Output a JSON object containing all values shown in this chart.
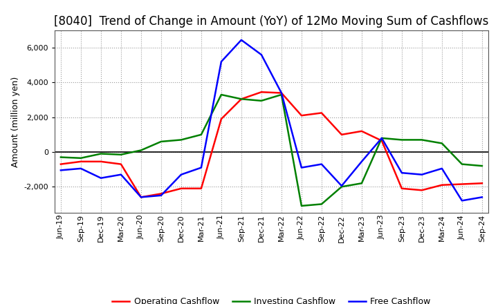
{
  "title": "[8040]  Trend of Change in Amount (YoY) of 12Mo Moving Sum of Cashflows",
  "ylabel": "Amount (million yen)",
  "x_labels": [
    "Jun-19",
    "Sep-19",
    "Dec-19",
    "Mar-20",
    "Jun-20",
    "Sep-20",
    "Dec-20",
    "Mar-21",
    "Jun-21",
    "Sep-21",
    "Dec-21",
    "Mar-22",
    "Jun-22",
    "Sep-22",
    "Dec-22",
    "Mar-23",
    "Jun-23",
    "Sep-23",
    "Dec-23",
    "Mar-24",
    "Jun-24",
    "Sep-24"
  ],
  "operating": [
    -700,
    -550,
    -550,
    -700,
    -2600,
    -2400,
    -2100,
    -2100,
    1900,
    3050,
    3450,
    3400,
    2100,
    2250,
    1000,
    1200,
    650,
    -2100,
    -2200,
    -1900,
    -1850,
    -1800
  ],
  "investing": [
    -300,
    -350,
    -100,
    -150,
    100,
    600,
    700,
    1000,
    3300,
    3050,
    2950,
    3300,
    -3100,
    -3000,
    -2000,
    -1800,
    800,
    700,
    700,
    500,
    -700,
    -800
  ],
  "free": [
    -1050,
    -950,
    -1500,
    -1300,
    -2600,
    -2500,
    -1300,
    -900,
    5200,
    6450,
    5600,
    3400,
    -900,
    -700,
    -1950,
    -550,
    800,
    -1200,
    -1300,
    -950,
    -2800,
    -2600
  ],
  "operating_color": "#ff0000",
  "investing_color": "#008000",
  "free_color": "#0000ff",
  "ylim": [
    -3500,
    7000
  ],
  "yticks": [
    -2000,
    0,
    2000,
    4000,
    6000
  ],
  "plot_bg_color": "#ffffff",
  "fig_bg_color": "#ffffff",
  "grid_color": "#999999",
  "title_fontsize": 12,
  "axis_label_fontsize": 9,
  "tick_fontsize": 8,
  "legend_labels": [
    "Operating Cashflow",
    "Investing Cashflow",
    "Free Cashflow"
  ],
  "linewidth": 1.8
}
